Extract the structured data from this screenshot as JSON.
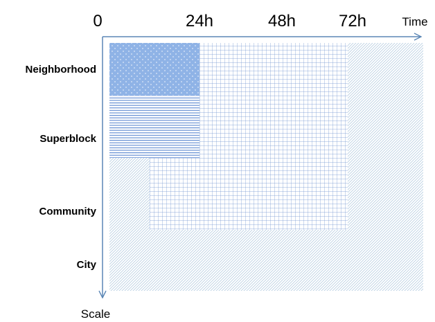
{
  "axes": {
    "x_title": "Time",
    "y_title": "Scale",
    "x_ticks": [
      "0",
      "24h",
      "48h",
      "72h"
    ]
  },
  "rows": {
    "neighborhood": "Neighborhood",
    "superblock": "Superblock",
    "community": "Community",
    "city": "City"
  },
  "colors": {
    "axis": "#5b86b5",
    "solid_fill": "#8fb3e6",
    "dots": "#ffffff",
    "horizontal_lines": "#5b87d0",
    "grid_lines": "#6f93cf",
    "diagonal_hatch": "#b6cde0"
  },
  "patterns": {
    "neighborhood_24h": "solid-dotted",
    "superblock_24h": "horizontal-lines",
    "community_72h": "grid",
    "city_and_background": "diagonal-hatch"
  }
}
